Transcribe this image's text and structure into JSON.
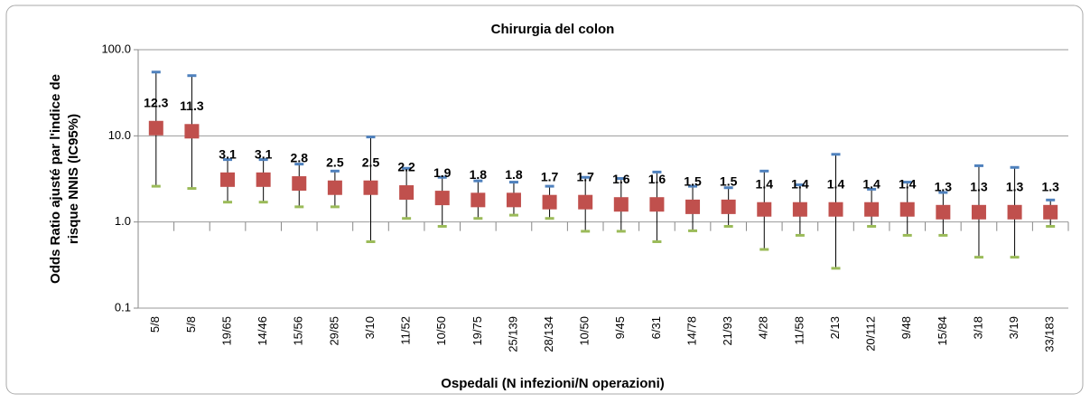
{
  "chart_data": {
    "type": "errorbar",
    "title": "Chirurgia del colon",
    "x_label": "Ospedali (N infezioni/N operazioni)",
    "y_label": [
      "Odds Ratio ajusté par l'indice de",
      "risque NNIS (IC95%)"
    ],
    "categories": [
      "5/8",
      "5/8",
      "19/65",
      "14/46",
      "15/56",
      "29/85",
      "3/10",
      "11/52",
      "10/50",
      "19/75",
      "25/139",
      "28/134",
      "10/50",
      "9/45",
      "6/31",
      "14/78",
      "21/93",
      "4/28",
      "11/58",
      "2/13",
      "20/112",
      "9/48",
      "15/84",
      "3/18",
      "3/19",
      "33/183"
    ],
    "values": [
      12.3,
      11.3,
      3.1,
      3.1,
      2.8,
      2.5,
      2.5,
      2.2,
      1.9,
      1.8,
      1.8,
      1.7,
      1.7,
      1.6,
      1.6,
      1.5,
      1.5,
      1.4,
      1.4,
      1.4,
      1.4,
      1.4,
      1.3,
      1.3,
      1.3,
      1.3
    ],
    "upper": [
      55,
      50,
      5.3,
      5.3,
      4.7,
      3.9,
      9.7,
      4.2,
      3.3,
      3.0,
      2.9,
      2.6,
      3.3,
      3.2,
      3.8,
      2.6,
      2.5,
      3.9,
      2.7,
      6.1,
      2.4,
      2.9,
      2.2,
      4.5,
      4.3,
      1.8
    ],
    "lower": [
      2.6,
      2.45,
      1.7,
      1.7,
      1.5,
      1.5,
      0.59,
      1.1,
      0.89,
      1.1,
      1.2,
      1.1,
      0.78,
      0.78,
      0.59,
      0.79,
      0.89,
      0.48,
      0.7,
      0.29,
      0.89,
      0.7,
      0.7,
      0.39,
      0.39,
      0.89
    ],
    "color": "#c0504d",
    "upper_color": "#4f81bd",
    "lower_color": "#9bbb59",
    "log_scale": true,
    "ylim": [
      0.1,
      100
    ],
    "yticks": [
      0.1,
      {
        "value": 1,
        "label": "1.0"
      },
      {
        "value": 10,
        "label": "10.0"
      },
      {
        "value": 100,
        "label": "100.0"
      }
    ],
    "grid": true
  }
}
